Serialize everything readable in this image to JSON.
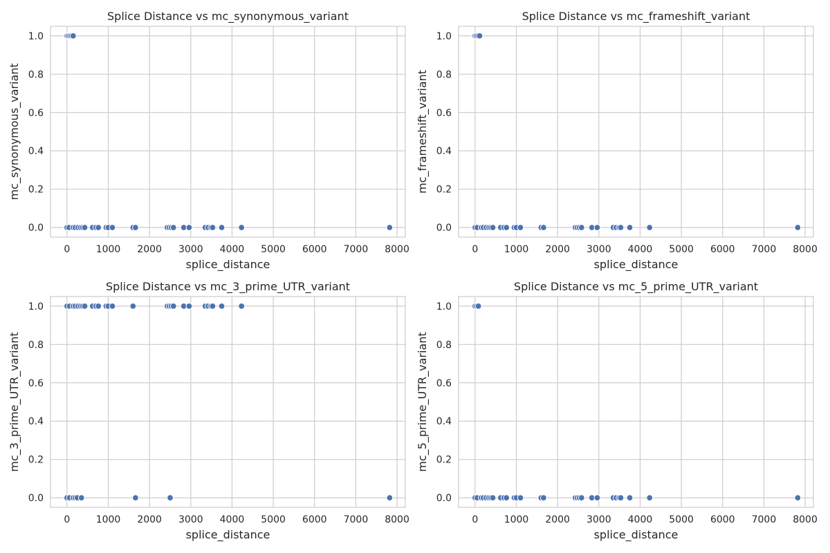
{
  "colors": {
    "marker": "#4c72b0"
  },
  "chart_data": [
    {
      "type": "scatter",
      "title": "Splice Distance vs mc_synonymous_variant",
      "xlabel": "splice_distance",
      "ylabel": "mc_synonymous_variant",
      "xlim": [
        -400,
        8200
      ],
      "ylim": [
        -0.05,
        1.05
      ],
      "xticks": [
        0,
        1000,
        2000,
        3000,
        4000,
        5000,
        6000,
        7000,
        8000
      ],
      "yticks": [
        0.0,
        0.2,
        0.4,
        0.6,
        0.8,
        1.0
      ],
      "xtick_labels": [
        "0",
        "1000",
        "2000",
        "3000",
        "4000",
        "5000",
        "6000",
        "7000",
        "8000"
      ],
      "ytick_labels": [
        "0.0",
        "0.2",
        "0.4",
        "0.6",
        "0.8",
        "1.0"
      ],
      "grid": true,
      "points": [
        [
          0,
          1
        ],
        [
          30,
          1
        ],
        [
          70,
          1
        ],
        [
          110,
          1
        ],
        [
          150,
          1
        ],
        [
          0,
          0
        ],
        [
          50,
          0
        ],
        [
          150,
          0
        ],
        [
          200,
          0
        ],
        [
          270,
          0
        ],
        [
          330,
          0
        ],
        [
          380,
          0
        ],
        [
          430,
          0
        ],
        [
          620,
          0
        ],
        [
          700,
          0
        ],
        [
          760,
          0
        ],
        [
          950,
          0
        ],
        [
          1000,
          0
        ],
        [
          1100,
          0
        ],
        [
          1600,
          0
        ],
        [
          1660,
          0
        ],
        [
          2430,
          0
        ],
        [
          2480,
          0
        ],
        [
          2530,
          0
        ],
        [
          2580,
          0
        ],
        [
          2830,
          0
        ],
        [
          2960,
          0
        ],
        [
          3350,
          0
        ],
        [
          3420,
          0
        ],
        [
          3490,
          0
        ],
        [
          3530,
          0
        ],
        [
          3750,
          0
        ],
        [
          4230,
          0
        ],
        [
          7820,
          0
        ]
      ]
    },
    {
      "type": "scatter",
      "title": "Splice Distance vs mc_frameshift_variant",
      "xlabel": "splice_distance",
      "ylabel": "mc_frameshift_variant",
      "xlim": [
        -400,
        8200
      ],
      "ylim": [
        -0.05,
        1.05
      ],
      "xticks": [
        0,
        1000,
        2000,
        3000,
        4000,
        5000,
        6000,
        7000,
        8000
      ],
      "yticks": [
        0.0,
        0.2,
        0.4,
        0.6,
        0.8,
        1.0
      ],
      "xtick_labels": [
        "0",
        "1000",
        "2000",
        "3000",
        "4000",
        "5000",
        "6000",
        "7000",
        "8000"
      ],
      "ytick_labels": [
        "0.0",
        "0.2",
        "0.4",
        "0.6",
        "0.8",
        "1.0"
      ],
      "grid": true,
      "points": [
        [
          0,
          1
        ],
        [
          30,
          1
        ],
        [
          70,
          1
        ],
        [
          110,
          1
        ],
        [
          0,
          0
        ],
        [
          50,
          0
        ],
        [
          150,
          0
        ],
        [
          200,
          0
        ],
        [
          270,
          0
        ],
        [
          330,
          0
        ],
        [
          380,
          0
        ],
        [
          430,
          0
        ],
        [
          620,
          0
        ],
        [
          700,
          0
        ],
        [
          760,
          0
        ],
        [
          950,
          0
        ],
        [
          1000,
          0
        ],
        [
          1100,
          0
        ],
        [
          1600,
          0
        ],
        [
          1660,
          0
        ],
        [
          2430,
          0
        ],
        [
          2480,
          0
        ],
        [
          2530,
          0
        ],
        [
          2580,
          0
        ],
        [
          2830,
          0
        ],
        [
          2960,
          0
        ],
        [
          3350,
          0
        ],
        [
          3420,
          0
        ],
        [
          3490,
          0
        ],
        [
          3530,
          0
        ],
        [
          3750,
          0
        ],
        [
          4230,
          0
        ],
        [
          7820,
          0
        ]
      ]
    },
    {
      "type": "scatter",
      "title": "Splice Distance vs mc_3_prime_UTR_variant",
      "xlabel": "splice_distance",
      "ylabel": "mc_3_prime_UTR_variant",
      "xlim": [
        -400,
        8200
      ],
      "ylim": [
        -0.05,
        1.05
      ],
      "xticks": [
        0,
        1000,
        2000,
        3000,
        4000,
        5000,
        6000,
        7000,
        8000
      ],
      "yticks": [
        0.0,
        0.2,
        0.4,
        0.6,
        0.8,
        1.0
      ],
      "xtick_labels": [
        "0",
        "1000",
        "2000",
        "3000",
        "4000",
        "5000",
        "6000",
        "7000",
        "8000"
      ],
      "ytick_labels": [
        "0.0",
        "0.2",
        "0.4",
        "0.6",
        "0.8",
        "1.0"
      ],
      "grid": true,
      "points": [
        [
          0,
          1
        ],
        [
          60,
          1
        ],
        [
          150,
          1
        ],
        [
          200,
          1
        ],
        [
          270,
          1
        ],
        [
          330,
          1
        ],
        [
          380,
          1
        ],
        [
          430,
          1
        ],
        [
          620,
          1
        ],
        [
          700,
          1
        ],
        [
          760,
          1
        ],
        [
          950,
          1
        ],
        [
          1000,
          1
        ],
        [
          1100,
          1
        ],
        [
          1600,
          1
        ],
        [
          2430,
          1
        ],
        [
          2480,
          1
        ],
        [
          2530,
          1
        ],
        [
          2580,
          1
        ],
        [
          2830,
          1
        ],
        [
          2960,
          1
        ],
        [
          3350,
          1
        ],
        [
          3420,
          1
        ],
        [
          3490,
          1
        ],
        [
          3530,
          1
        ],
        [
          3750,
          1
        ],
        [
          4230,
          1
        ],
        [
          0,
          0
        ],
        [
          60,
          0
        ],
        [
          150,
          0
        ],
        [
          200,
          0
        ],
        [
          250,
          0
        ],
        [
          350,
          0
        ],
        [
          1660,
          0
        ],
        [
          2500,
          0
        ],
        [
          7820,
          0
        ]
      ]
    },
    {
      "type": "scatter",
      "title": "Splice Distance vs mc_5_prime_UTR_variant",
      "xlabel": "splice_distance",
      "ylabel": "mc_5_prime_UTR_variant",
      "xlim": [
        -400,
        8200
      ],
      "ylim": [
        -0.05,
        1.05
      ],
      "xticks": [
        0,
        1000,
        2000,
        3000,
        4000,
        5000,
        6000,
        7000,
        8000
      ],
      "yticks": [
        0.0,
        0.2,
        0.4,
        0.6,
        0.8,
        1.0
      ],
      "xtick_labels": [
        "0",
        "1000",
        "2000",
        "3000",
        "4000",
        "5000",
        "6000",
        "7000",
        "8000"
      ],
      "ytick_labels": [
        "0.0",
        "0.2",
        "0.4",
        "0.6",
        "0.8",
        "1.0"
      ],
      "grid": true,
      "points": [
        [
          0,
          1
        ],
        [
          40,
          1
        ],
        [
          80,
          1
        ],
        [
          0,
          0
        ],
        [
          50,
          0
        ],
        [
          150,
          0
        ],
        [
          200,
          0
        ],
        [
          270,
          0
        ],
        [
          330,
          0
        ],
        [
          380,
          0
        ],
        [
          430,
          0
        ],
        [
          620,
          0
        ],
        [
          700,
          0
        ],
        [
          760,
          0
        ],
        [
          950,
          0
        ],
        [
          1000,
          0
        ],
        [
          1100,
          0
        ],
        [
          1600,
          0
        ],
        [
          1660,
          0
        ],
        [
          2430,
          0
        ],
        [
          2480,
          0
        ],
        [
          2530,
          0
        ],
        [
          2580,
          0
        ],
        [
          2830,
          0
        ],
        [
          2960,
          0
        ],
        [
          3350,
          0
        ],
        [
          3420,
          0
        ],
        [
          3490,
          0
        ],
        [
          3530,
          0
        ],
        [
          3750,
          0
        ],
        [
          4230,
          0
        ],
        [
          7820,
          0
        ]
      ]
    }
  ]
}
